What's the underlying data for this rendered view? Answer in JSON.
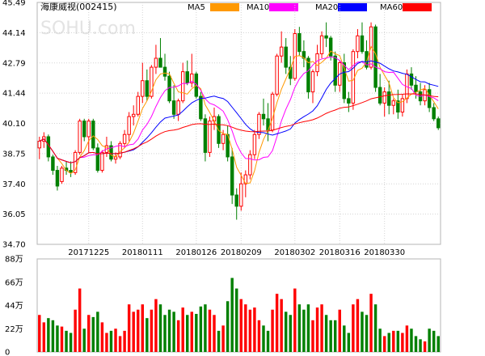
{
  "chart_data": {
    "type": "candlestick",
    "title": "海康威视(002415)",
    "watermark": "SOHU.com",
    "legend": [
      {
        "name": "MA5",
        "color": "#FF9900"
      },
      {
        "name": "MA10",
        "color": "#FF00FF"
      },
      {
        "name": "MA20",
        "color": "#0000FF"
      },
      {
        "name": "MA60",
        "color": "#FF0000"
      }
    ],
    "y_ticks": [
      "45.49",
      "44.14",
      "42.79",
      "41.44",
      "40.10",
      "38.75",
      "37.40",
      "36.05",
      "34.70"
    ],
    "ylim": [
      34.7,
      45.49
    ],
    "x_ticks": [
      {
        "label": "20171225",
        "index": 11
      },
      {
        "label": "20180111",
        "index": 23
      },
      {
        "label": "20180126",
        "index": 35
      },
      {
        "label": "20180209",
        "index": 45
      },
      {
        "label": "20180302",
        "index": 57
      },
      {
        "label": "20180316",
        "index": 67
      },
      {
        "label": "20180330",
        "index": 77
      }
    ],
    "volume_ticks": [
      "88万",
      "66万",
      "44万",
      "22万",
      "0"
    ],
    "volume_max": 88,
    "up_color": "#FF0000",
    "down_color": "#008000",
    "candles": [
      [
        39.0,
        39.5,
        38.5,
        39.3,
        35
      ],
      [
        39.3,
        39.7,
        39.0,
        39.5,
        28
      ],
      [
        39.5,
        39.6,
        38.4,
        38.6,
        32
      ],
      [
        38.6,
        38.7,
        37.8,
        38.0,
        30
      ],
      [
        38.0,
        38.2,
        37.1,
        37.3,
        25
      ],
      [
        37.5,
        38.2,
        37.4,
        38.1,
        24
      ],
      [
        38.1,
        38.4,
        37.8,
        38.0,
        20
      ],
      [
        38.0,
        38.4,
        37.7,
        37.9,
        18
      ],
      [
        37.9,
        38.9,
        37.8,
        38.8,
        40
      ],
      [
        38.8,
        40.3,
        38.7,
        40.2,
        60
      ],
      [
        40.2,
        40.3,
        39.3,
        39.5,
        22
      ],
      [
        39.5,
        40.3,
        38.8,
        40.2,
        35
      ],
      [
        40.2,
        40.3,
        38.9,
        39.0,
        33
      ],
      [
        39.0,
        39.2,
        37.9,
        38.0,
        38
      ],
      [
        38.0,
        38.9,
        37.9,
        38.8,
        28
      ],
      [
        38.8,
        39.5,
        38.6,
        39.1,
        18
      ],
      [
        39.1,
        39.3,
        38.4,
        38.5,
        20
      ],
      [
        38.5,
        38.8,
        38.3,
        38.6,
        22
      ],
      [
        38.6,
        39.3,
        38.5,
        39.2,
        15
      ],
      [
        39.2,
        39.8,
        39.0,
        39.6,
        20
      ],
      [
        39.6,
        40.6,
        39.3,
        40.4,
        45
      ],
      [
        40.4,
        40.9,
        40.0,
        40.5,
        38
      ],
      [
        40.5,
        41.5,
        40.4,
        41.3,
        40
      ],
      [
        41.3,
        42.8,
        41.0,
        42.0,
        45
      ],
      [
        42.0,
        42.5,
        41.1,
        41.3,
        32
      ],
      [
        41.3,
        42.7,
        41.2,
        42.6,
        40
      ],
      [
        42.6,
        43.6,
        42.3,
        43.0,
        50
      ],
      [
        43.0,
        43.9,
        42.6,
        42.6,
        45
      ],
      [
        42.6,
        43.2,
        42.0,
        42.2,
        35
      ],
      [
        42.2,
        42.4,
        41.0,
        41.1,
        40
      ],
      [
        41.1,
        41.8,
        40.3,
        40.5,
        38
      ],
      [
        40.5,
        41.2,
        40.2,
        41.1,
        30
      ],
      [
        41.1,
        42.8,
        41.0,
        42.4,
        42
      ],
      [
        42.4,
        42.9,
        41.8,
        41.9,
        35
      ],
      [
        41.9,
        43.2,
        41.7,
        42.3,
        38
      ],
      [
        42.3,
        42.4,
        41.2,
        41.3,
        36
      ],
      [
        41.3,
        41.5,
        40.2,
        40.3,
        43
      ],
      [
        40.3,
        40.5,
        38.4,
        38.8,
        45
      ],
      [
        38.8,
        40.4,
        38.6,
        40.2,
        40
      ],
      [
        40.2,
        40.8,
        39.8,
        40.4,
        35
      ],
      [
        40.4,
        40.5,
        39.0,
        39.2,
        20
      ],
      [
        39.2,
        39.8,
        38.9,
        39.6,
        25
      ],
      [
        39.6,
        40.0,
        38.4,
        38.6,
        48
      ],
      [
        38.6,
        39.0,
        36.5,
        36.9,
        70
      ],
      [
        36.9,
        37.2,
        35.8,
        36.4,
        60
      ],
      [
        36.4,
        37.9,
        36.2,
        37.4,
        50
      ],
      [
        37.4,
        38.0,
        36.8,
        37.8,
        45
      ],
      [
        37.8,
        38.9,
        37.6,
        38.7,
        40
      ],
      [
        38.7,
        39.8,
        38.5,
        39.6,
        42
      ],
      [
        39.6,
        40.6,
        39.4,
        40.5,
        30
      ],
      [
        40.5,
        41.2,
        40.0,
        40.3,
        25
      ],
      [
        40.3,
        41.0,
        39.3,
        39.8,
        20
      ],
      [
        39.8,
        41.5,
        39.7,
        41.4,
        40
      ],
      [
        41.4,
        43.2,
        41.3,
        43.1,
        55
      ],
      [
        43.1,
        44.2,
        42.8,
        43.5,
        50
      ],
      [
        43.5,
        43.9,
        42.3,
        42.6,
        38
      ],
      [
        42.6,
        43.1,
        41.8,
        42.1,
        35
      ],
      [
        42.1,
        44.3,
        42.0,
        44.1,
        60
      ],
      [
        44.1,
        44.4,
        43.1,
        43.3,
        45
      ],
      [
        43.3,
        43.8,
        42.6,
        43.0,
        40
      ],
      [
        43.0,
        43.1,
        41.2,
        41.5,
        45
      ],
      [
        41.5,
        42.5,
        41.0,
        42.4,
        30
      ],
      [
        42.4,
        43.6,
        42.2,
        43.2,
        42
      ],
      [
        43.2,
        44.2,
        43.0,
        44.0,
        45
      ],
      [
        44.0,
        44.6,
        43.5,
        43.9,
        35
      ],
      [
        43.9,
        44.0,
        42.9,
        43.1,
        30
      ],
      [
        43.1,
        43.3,
        41.5,
        41.8,
        30
      ],
      [
        41.8,
        42.9,
        41.5,
        42.8,
        40
      ],
      [
        42.8,
        43.2,
        41.0,
        41.2,
        25
      ],
      [
        41.2,
        41.5,
        40.6,
        41.0,
        18
      ],
      [
        41.0,
        43.4,
        40.7,
        43.3,
        45
      ],
      [
        43.3,
        44.3,
        43.0,
        44.0,
        50
      ],
      [
        44.0,
        44.6,
        43.2,
        43.3,
        38
      ],
      [
        43.3,
        43.8,
        42.5,
        42.6,
        35
      ],
      [
        42.6,
        44.6,
        42.5,
        44.4,
        55
      ],
      [
        44.4,
        44.5,
        41.5,
        41.7,
        45
      ],
      [
        41.7,
        42.3,
        40.9,
        41.0,
        22
      ],
      [
        41.0,
        41.7,
        40.4,
        41.5,
        15
      ],
      [
        41.5,
        42.0,
        40.5,
        40.9,
        18
      ],
      [
        40.9,
        41.2,
        40.5,
        41.1,
        20
      ],
      [
        41.1,
        41.6,
        40.3,
        40.6,
        20
      ],
      [
        40.6,
        41.4,
        40.4,
        41.2,
        18
      ],
      [
        41.2,
        42.5,
        41.0,
        42.3,
        25
      ],
      [
        42.3,
        42.6,
        41.6,
        41.8,
        22
      ],
      [
        41.8,
        42.2,
        41.2,
        41.5,
        15
      ],
      [
        41.5,
        41.9,
        40.9,
        41.1,
        12
      ],
      [
        41.1,
        41.8,
        40.9,
        41.6,
        10
      ],
      [
        41.6,
        41.9,
        40.6,
        40.8,
        22
      ],
      [
        40.8,
        41.0,
        40.2,
        40.3,
        20
      ],
      [
        40.3,
        40.4,
        39.8,
        39.9,
        15
      ]
    ]
  }
}
